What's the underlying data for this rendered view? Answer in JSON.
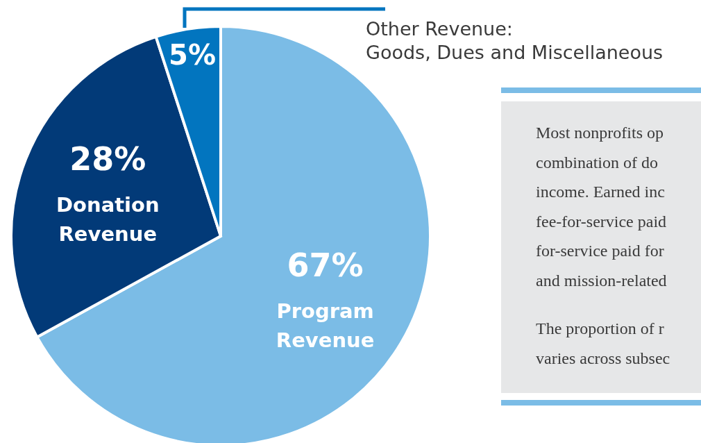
{
  "chart_data": {
    "type": "pie",
    "categories": [
      "Program Revenue",
      "Donation Revenue",
      "Other Revenue: Goods, Dues and Miscellaneous"
    ],
    "values": [
      67,
      28,
      5
    ],
    "colors": [
      "#7bbce6",
      "#023a78",
      "#0275bf"
    ],
    "value_labels": [
      "67%",
      "28%",
      "5%"
    ],
    "annotations": [
      "Most nonprofits op",
      "combination of do",
      "income. Earned inc",
      "fee-for-service paid",
      "for-service paid for",
      "and mission-related",
      "The proportion of r",
      "varies across subsec"
    ]
  }
}
